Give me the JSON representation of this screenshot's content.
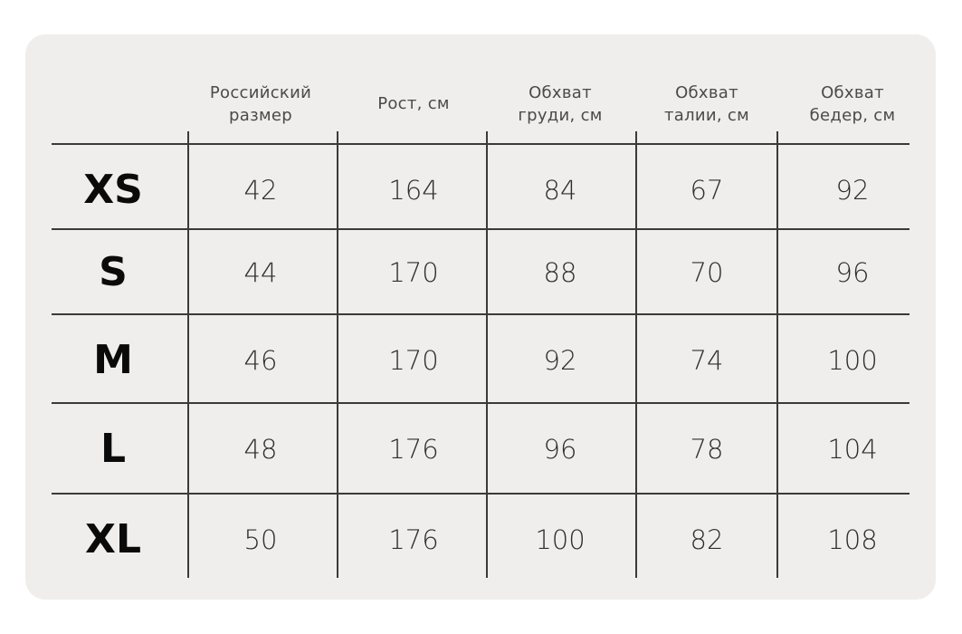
{
  "table": {
    "headers": [
      "Российский\nразмер",
      "Рост, см",
      "Обхват\nгруди, см",
      "Обхват\nталии, см",
      "Обхват\nбедер, см"
    ],
    "rows": [
      {
        "size": "XS",
        "values": [
          "42",
          "164",
          "84",
          "67",
          "92"
        ]
      },
      {
        "size": "S",
        "values": [
          "44",
          "170",
          "88",
          "70",
          "96"
        ]
      },
      {
        "size": "M",
        "values": [
          "46",
          "170",
          "92",
          "74",
          "100"
        ]
      },
      {
        "size": "L",
        "values": [
          "48",
          "176",
          "96",
          "78",
          "104"
        ]
      },
      {
        "size": "XL",
        "values": [
          "50",
          "176",
          "100",
          "82",
          "108"
        ]
      }
    ]
  },
  "colors": {
    "card_background": "#efeeec",
    "lines": "#3a3a3a",
    "text": "#0a0a0a"
  }
}
